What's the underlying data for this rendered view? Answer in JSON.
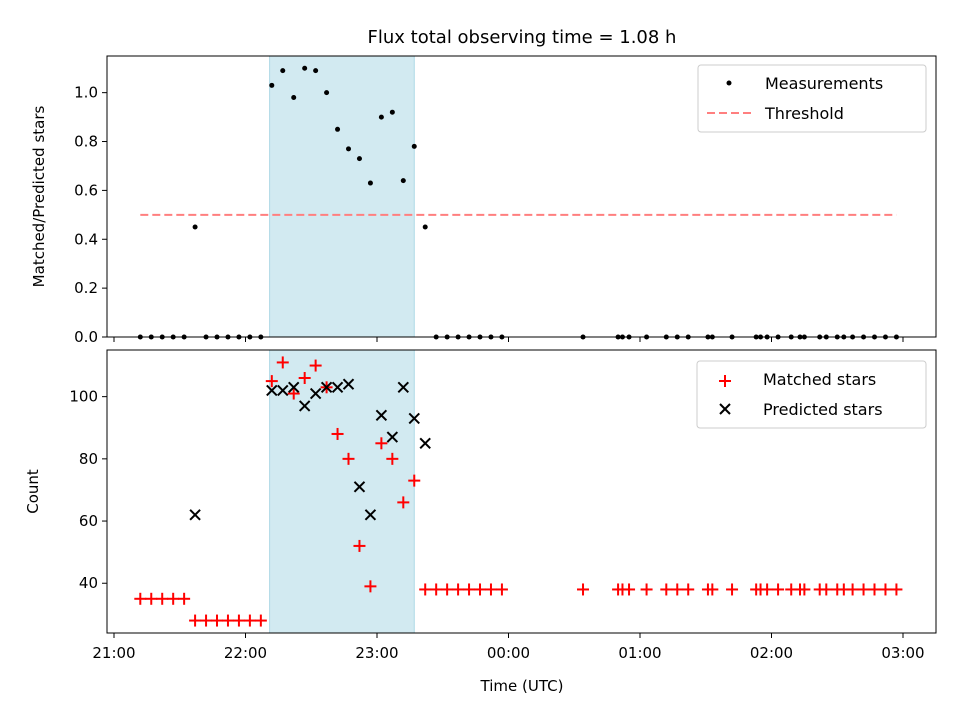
{
  "title": "Flux total observing time = 1.08 h",
  "colors": {
    "span": "#add8e6",
    "measurement": "#000000",
    "threshold": "#ff7f7f",
    "matched": "#ff0000",
    "predicted": "#000000"
  },
  "chart_data": [
    {
      "type": "scatter",
      "panel": "top",
      "ylabel": "Matched/Predicted stars",
      "xlim": [
        "21:00",
        "03:00"
      ],
      "ylim": [
        0,
        1.15
      ],
      "yticks": [
        "0.0",
        "0.2",
        "0.4",
        "0.6",
        "0.8",
        "1.0"
      ],
      "ytick_values": [
        0,
        0.2,
        0.4,
        0.6,
        0.8,
        1.0
      ],
      "xtick_values": [
        "21:00",
        "22:00",
        "23:00",
        "00:00",
        "01:00",
        "02:00",
        "03:00"
      ],
      "highlight_span": [
        "22:11",
        "23:17"
      ],
      "legend_position": "top-right",
      "series": [
        {
          "name": "Measurements",
          "kind": "points",
          "x": [
            "21:12",
            "21:17",
            "21:22",
            "21:27",
            "21:32",
            "21:37",
            "21:42",
            "21:47",
            "21:52",
            "21:57",
            "22:02",
            "22:07",
            "22:12",
            "22:17",
            "22:22",
            "22:27",
            "22:32",
            "22:37",
            "22:42",
            "22:47",
            "22:52",
            "22:57",
            "23:02",
            "23:07",
            "23:12",
            "23:17",
            "23:22",
            "23:27",
            "23:32",
            "23:37",
            "23:42",
            "23:47",
            "23:52",
            "23:57",
            "00:34",
            "00:50",
            "00:52",
            "00:55",
            "01:03",
            "01:12",
            "01:17",
            "01:22",
            "01:31",
            "01:33",
            "01:42",
            "01:53",
            "01:55",
            "01:58",
            "02:03",
            "02:09",
            "02:13",
            "02:15",
            "02:22",
            "02:25",
            "02:30",
            "02:33",
            "02:37",
            "02:42",
            "02:47",
            "02:52",
            "02:57"
          ],
          "y": [
            0,
            0,
            0,
            0,
            0,
            0.45,
            0,
            0,
            0,
            0,
            0,
            0,
            1.03,
            1.09,
            0.98,
            1.1,
            1.09,
            1.0,
            0.85,
            0.77,
            0.73,
            0.63,
            0.9,
            0.92,
            0.64,
            0.78,
            0.45,
            0,
            0,
            0,
            0,
            0,
            0,
            0,
            0,
            0,
            0,
            0,
            0,
            0,
            0,
            0,
            0,
            0,
            0,
            0,
            0,
            0,
            0,
            0,
            0,
            0,
            0,
            0,
            0,
            0,
            0,
            0,
            0,
            0,
            0
          ]
        },
        {
          "name": "Threshold",
          "kind": "dashed-line",
          "x": [
            "21:12",
            "02:57"
          ],
          "y": [
            0.5,
            0.5
          ]
        }
      ]
    },
    {
      "type": "scatter",
      "panel": "bottom",
      "xlabel": "Time (UTC)",
      "ylabel": "Count",
      "xlim": [
        "21:00",
        "03:00"
      ],
      "ylim": [
        24,
        115
      ],
      "yticks": [
        "40",
        "60",
        "80",
        "100"
      ],
      "ytick_values": [
        40,
        60,
        80,
        100
      ],
      "xticks": [
        "21:00",
        "22:00",
        "23:00",
        "00:00",
        "01:00",
        "02:00",
        "03:00"
      ],
      "highlight_span": [
        "22:11",
        "23:17"
      ],
      "legend_position": "top-right",
      "series": [
        {
          "name": "Matched stars",
          "marker": "plus",
          "x": [
            "21:12",
            "21:17",
            "21:22",
            "21:27",
            "21:32",
            "21:37",
            "21:42",
            "21:47",
            "21:52",
            "21:57",
            "22:02",
            "22:07",
            "22:12",
            "22:17",
            "22:22",
            "22:27",
            "22:32",
            "22:37",
            "22:42",
            "22:47",
            "22:52",
            "22:57",
            "23:02",
            "23:07",
            "23:12",
            "23:17",
            "23:22",
            "23:27",
            "23:32",
            "23:37",
            "23:42",
            "23:47",
            "23:52",
            "23:57",
            "00:34",
            "00:50",
            "00:52",
            "00:55",
            "01:03",
            "01:12",
            "01:17",
            "01:22",
            "01:31",
            "01:33",
            "01:42",
            "01:53",
            "01:55",
            "01:58",
            "02:03",
            "02:09",
            "02:13",
            "02:15",
            "02:22",
            "02:25",
            "02:30",
            "02:33",
            "02:37",
            "02:42",
            "02:47",
            "02:52",
            "02:57"
          ],
          "y": [
            35,
            35,
            35,
            35,
            35,
            28,
            28,
            28,
            28,
            28,
            28,
            28,
            105,
            111,
            101,
            106,
            110,
            103,
            88,
            80,
            52,
            39,
            85,
            80,
            66,
            73,
            38,
            38,
            38,
            38,
            38,
            38,
            38,
            38,
            38,
            38,
            38,
            38,
            38,
            38,
            38,
            38,
            38,
            38,
            38,
            38,
            38,
            38,
            38,
            38,
            38,
            38,
            38,
            38,
            38,
            38,
            38,
            38,
            38,
            38,
            38
          ]
        },
        {
          "name": "Predicted stars",
          "marker": "x",
          "x": [
            "21:37",
            "22:12",
            "22:17",
            "22:22",
            "22:27",
            "22:32",
            "22:37",
            "22:42",
            "22:47",
            "22:52",
            "22:57",
            "23:02",
            "23:07",
            "23:12",
            "23:17",
            "23:22"
          ],
          "y": [
            62,
            102,
            102,
            103,
            97,
            101,
            103,
            103,
            104,
            71,
            62,
            94,
            87,
            103,
            93,
            85
          ]
        }
      ]
    }
  ]
}
